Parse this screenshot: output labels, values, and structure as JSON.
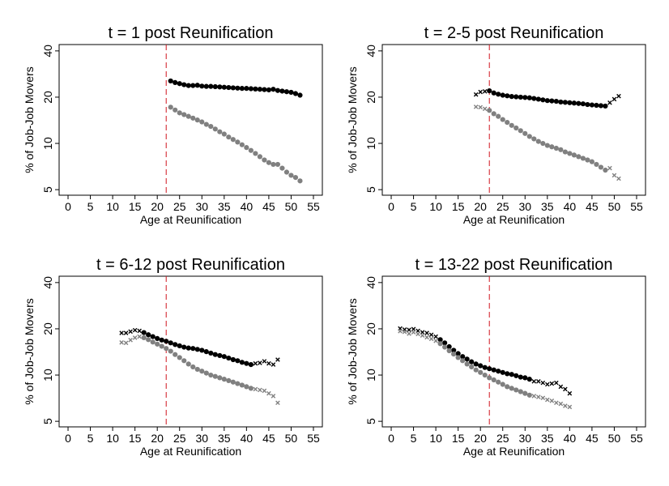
{
  "chart_data": [
    {
      "type": "scatter",
      "title": "t = 1 post Reunification",
      "xlabel": "Age at Reunification",
      "ylabel": "% of Job-Job Movers",
      "xlim": [
        -2,
        57
      ],
      "ylim": [
        4.6,
        44
      ],
      "ylog": true,
      "xticks": [
        0,
        5,
        10,
        15,
        20,
        25,
        30,
        35,
        40,
        45,
        50,
        55
      ],
      "yticks": [
        5,
        10,
        20,
        40
      ],
      "vline": 22,
      "series": [
        {
          "color": "#000000",
          "marker": "dot",
          "x": [
            23,
            24,
            25,
            26,
            27,
            28,
            29,
            30,
            31,
            32,
            33,
            34,
            35,
            36,
            37,
            38,
            39,
            40,
            41,
            42,
            43,
            44,
            45,
            46,
            47,
            48,
            49,
            50,
            51,
            52
          ],
          "y": [
            25.5,
            24.9,
            24.5,
            24.1,
            23.8,
            23.8,
            23.9,
            23.6,
            23.5,
            23.5,
            23.4,
            23.3,
            23.2,
            23.1,
            23.0,
            22.9,
            22.8,
            22.8,
            22.7,
            22.6,
            22.5,
            22.4,
            22.3,
            22.5,
            22.1,
            21.9,
            21.7,
            21.5,
            21.1,
            20.6
          ]
        },
        {
          "color": "#808080",
          "marker": "dot",
          "x": [
            23,
            24,
            25,
            26,
            27,
            28,
            29,
            30,
            31,
            32,
            33,
            34,
            35,
            36,
            37,
            38,
            39,
            40,
            41,
            42,
            43,
            44,
            45,
            46,
            47,
            48,
            49,
            50,
            51,
            52
          ],
          "y": [
            17.2,
            16.5,
            15.8,
            15.4,
            15.0,
            14.6,
            14.2,
            13.8,
            13.3,
            12.9,
            12.4,
            11.9,
            11.5,
            11.0,
            10.6,
            10.2,
            9.8,
            9.4,
            9.0,
            8.6,
            8.2,
            7.8,
            7.5,
            7.3,
            7.3,
            6.9,
            6.5,
            6.2,
            6.0,
            5.7
          ]
        }
      ]
    },
    {
      "type": "scatter",
      "title": "t = 2-5 post Reunification",
      "xlabel": "Age at Reunification",
      "ylabel": "% of Job-Job Movers",
      "xlim": [
        -2,
        57
      ],
      "ylim": [
        4.6,
        44
      ],
      "ylog": true,
      "xticks": [
        0,
        5,
        10,
        15,
        20,
        25,
        30,
        35,
        40,
        45,
        50,
        55
      ],
      "yticks": [
        5,
        10,
        20,
        40
      ],
      "vline": 22,
      "series": [
        {
          "color": "#000000",
          "marker": "cross",
          "x": [
            19,
            20,
            21
          ],
          "y": [
            20.8,
            21.6,
            21.8
          ]
        },
        {
          "color": "#000000",
          "marker": "dot",
          "x": [
            22,
            23,
            24,
            25,
            26,
            27,
            28,
            29,
            30,
            31,
            32,
            33,
            34,
            35,
            36,
            37,
            38,
            39,
            40,
            41,
            42,
            43,
            44,
            45,
            46,
            47,
            48
          ],
          "y": [
            22.0,
            21.3,
            20.9,
            20.6,
            20.4,
            20.2,
            20.1,
            20.0,
            19.9,
            19.8,
            19.6,
            19.4,
            19.2,
            19.0,
            18.9,
            18.8,
            18.6,
            18.5,
            18.4,
            18.3,
            18.2,
            18.1,
            17.9,
            17.8,
            17.7,
            17.6,
            17.5
          ]
        },
        {
          "color": "#000000",
          "marker": "cross",
          "x": [
            49,
            50,
            51
          ],
          "y": [
            18.4,
            19.4,
            20.3
          ]
        },
        {
          "color": "#808080",
          "marker": "cross",
          "x": [
            19,
            20,
            21
          ],
          "y": [
            17.3,
            17.2,
            16.8
          ]
        },
        {
          "color": "#808080",
          "marker": "dot",
          "x": [
            22,
            23,
            24,
            25,
            26,
            27,
            28,
            29,
            30,
            31,
            32,
            33,
            34,
            35,
            36,
            37,
            38,
            39,
            40,
            41,
            42,
            43,
            44,
            45,
            46,
            47,
            48
          ],
          "y": [
            16.4,
            15.6,
            15.0,
            14.3,
            13.7,
            13.1,
            12.6,
            12.1,
            11.6,
            11.1,
            10.7,
            10.3,
            10.0,
            9.7,
            9.5,
            9.3,
            9.1,
            8.8,
            8.6,
            8.4,
            8.2,
            8.0,
            7.8,
            7.6,
            7.3,
            7.0,
            6.7
          ]
        },
        {
          "color": "#808080",
          "marker": "cross",
          "x": [
            49,
            50,
            51
          ],
          "y": [
            6.9,
            6.2,
            5.9
          ]
        }
      ]
    },
    {
      "type": "scatter",
      "title": "t = 6-12 post Reunification",
      "xlabel": "Age at Reunification",
      "ylabel": "% of Job-Job Movers",
      "xlim": [
        -2,
        57
      ],
      "ylim": [
        4.6,
        44
      ],
      "ylog": true,
      "xticks": [
        0,
        5,
        10,
        15,
        20,
        25,
        30,
        35,
        40,
        45,
        50,
        55
      ],
      "yticks": [
        5,
        10,
        20,
        40
      ],
      "vline": 22,
      "series": [
        {
          "color": "#000000",
          "marker": "cross",
          "x": [
            12,
            13,
            14,
            15,
            16
          ],
          "y": [
            18.8,
            18.8,
            19.2,
            19.6,
            19.4
          ]
        },
        {
          "color": "#000000",
          "marker": "dot",
          "x": [
            17,
            18,
            19,
            20,
            21,
            22,
            23,
            24,
            25,
            26,
            27,
            28,
            29,
            30,
            31,
            32,
            33,
            34,
            35,
            36,
            37,
            38,
            39,
            40,
            41
          ],
          "y": [
            18.9,
            18.3,
            17.8,
            17.3,
            16.9,
            16.6,
            16.2,
            15.8,
            15.5,
            15.2,
            15.0,
            14.9,
            14.7,
            14.5,
            14.2,
            13.9,
            13.6,
            13.4,
            13.2,
            12.9,
            12.6,
            12.4,
            12.1,
            11.9,
            11.7
          ]
        },
        {
          "color": "#000000",
          "marker": "cross",
          "x": [
            42,
            43,
            44,
            45,
            46,
            47
          ],
          "y": [
            11.9,
            12.0,
            12.3,
            11.9,
            11.7,
            12.6
          ]
        },
        {
          "color": "#808080",
          "marker": "cross",
          "x": [
            12,
            13,
            14,
            15,
            16
          ],
          "y": [
            16.3,
            16.2,
            16.9,
            17.5,
            17.8
          ]
        },
        {
          "color": "#808080",
          "marker": "dot",
          "x": [
            17,
            18,
            19,
            20,
            21,
            22,
            23,
            24,
            25,
            26,
            27,
            28,
            29,
            30,
            31,
            32,
            33,
            34,
            35,
            36,
            37,
            38,
            39,
            40,
            41
          ],
          "y": [
            17.5,
            17.0,
            16.4,
            15.9,
            15.4,
            14.9,
            14.3,
            13.6,
            13.0,
            12.4,
            11.8,
            11.3,
            10.9,
            10.6,
            10.3,
            10.0,
            9.8,
            9.6,
            9.4,
            9.2,
            9.0,
            8.8,
            8.6,
            8.4,
            8.2
          ]
        },
        {
          "color": "#808080",
          "marker": "cross",
          "x": [
            42,
            43,
            44,
            45,
            46,
            47
          ],
          "y": [
            8.1,
            8.0,
            7.9,
            7.6,
            7.3,
            6.6
          ]
        }
      ]
    },
    {
      "type": "scatter",
      "title": "t = 13-22 post Reunification",
      "xlabel": "Age at Reunification",
      "ylabel": "% of Job-Job Movers",
      "xlim": [
        -2,
        57
      ],
      "ylim": [
        4.6,
        44
      ],
      "ylog": true,
      "xticks": [
        0,
        5,
        10,
        15,
        20,
        25,
        30,
        35,
        40,
        45,
        50,
        55
      ],
      "yticks": [
        5,
        10,
        20,
        40
      ],
      "vline": 22,
      "series": [
        {
          "color": "#000000",
          "marker": "cross",
          "x": [
            2,
            3,
            4,
            5,
            6,
            7,
            8,
            9,
            10
          ],
          "y": [
            20.1,
            19.8,
            19.7,
            19.9,
            19.4,
            19.0,
            18.8,
            18.3,
            17.8
          ]
        },
        {
          "color": "#000000",
          "marker": "dot",
          "x": [
            11,
            12,
            13,
            14,
            15,
            16,
            17,
            18,
            19,
            20,
            21,
            22,
            23,
            24,
            25,
            26,
            27,
            28,
            29,
            30,
            31
          ],
          "y": [
            17.0,
            16.2,
            15.3,
            14.5,
            13.8,
            13.2,
            12.7,
            12.2,
            11.8,
            11.5,
            11.2,
            11.0,
            10.8,
            10.6,
            10.4,
            10.2,
            10.1,
            9.9,
            9.7,
            9.6,
            9.4
          ]
        },
        {
          "color": "#000000",
          "marker": "cross",
          "x": [
            32,
            33,
            34,
            35,
            36,
            37,
            38,
            39,
            40
          ],
          "y": [
            9.1,
            9.1,
            8.9,
            8.7,
            8.8,
            8.9,
            8.4,
            8.1,
            7.6
          ]
        },
        {
          "color": "#808080",
          "marker": "cross",
          "x": [
            2,
            3,
            4,
            5,
            6,
            7,
            8,
            9,
            10
          ],
          "y": [
            19.3,
            19.1,
            18.6,
            19.0,
            18.5,
            18.1,
            17.6,
            17.2,
            16.7
          ]
        },
        {
          "color": "#808080",
          "marker": "dot",
          "x": [
            11,
            12,
            13,
            14,
            15,
            16,
            17,
            18,
            19,
            20,
            21,
            22,
            23,
            24,
            25,
            26,
            27,
            28,
            29,
            30,
            31
          ],
          "y": [
            16.0,
            15.2,
            14.4,
            13.7,
            13.0,
            12.4,
            11.8,
            11.3,
            10.8,
            10.4,
            10.0,
            9.6,
            9.3,
            9.0,
            8.7,
            8.4,
            8.2,
            8.0,
            7.8,
            7.6,
            7.4
          ]
        },
        {
          "color": "#808080",
          "marker": "cross",
          "x": [
            32,
            33,
            34,
            35,
            36,
            37,
            38,
            39,
            40
          ],
          "y": [
            7.3,
            7.2,
            7.1,
            6.9,
            6.8,
            6.6,
            6.5,
            6.3,
            6.2
          ]
        }
      ]
    }
  ]
}
